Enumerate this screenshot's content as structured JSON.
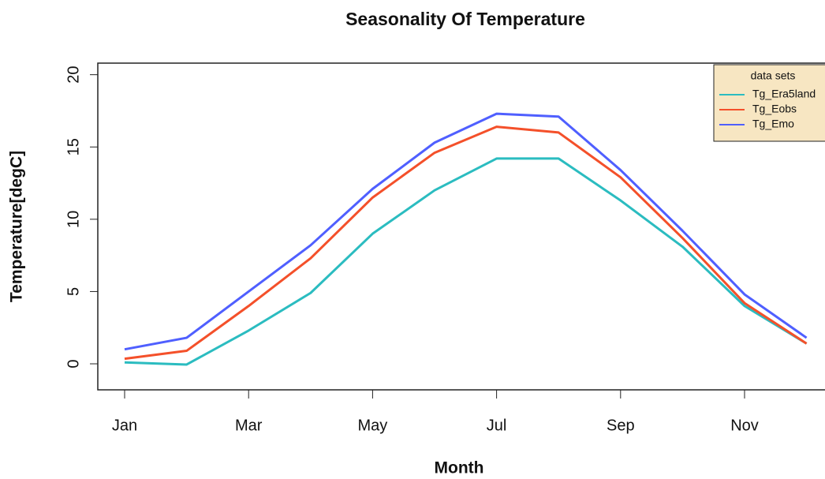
{
  "chart_data": {
    "type": "line",
    "title": "Seasonality Of Temperature",
    "x_label": "Month",
    "y_label": "Temperature[degC]",
    "categories": [
      "Jan",
      null,
      "Mar",
      null,
      "May",
      null,
      "Jul",
      null,
      "Sep",
      null,
      "Nov",
      null
    ],
    "series": [
      {
        "name": "Tg_Era5land",
        "color": "#2bbcc0",
        "values": [
          0.1,
          -0.05,
          2.3,
          4.9,
          9.0,
          12.0,
          14.2,
          14.2,
          11.3,
          8.1,
          4.0,
          1.4
        ]
      },
      {
        "name": "Tg_Eobs",
        "color": "#f4502a",
        "values": [
          0.35,
          0.9,
          4.0,
          7.3,
          11.5,
          14.6,
          16.4,
          16.0,
          12.9,
          8.7,
          4.2,
          1.4
        ]
      },
      {
        "name": "Tg_Emo",
        "color": "#4f5fff",
        "values": [
          1.0,
          1.8,
          5.0,
          8.2,
          12.1,
          15.3,
          17.3,
          17.1,
          13.4,
          9.2,
          4.8,
          1.8
        ]
      }
    ],
    "ylim": [
      -1.8,
      20.8
    ],
    "yticks": [
      0,
      5,
      10,
      15,
      20
    ],
    "grid": false,
    "legend": {
      "title": "data sets",
      "position": "top-right",
      "background": "#f7e6c2"
    }
  }
}
